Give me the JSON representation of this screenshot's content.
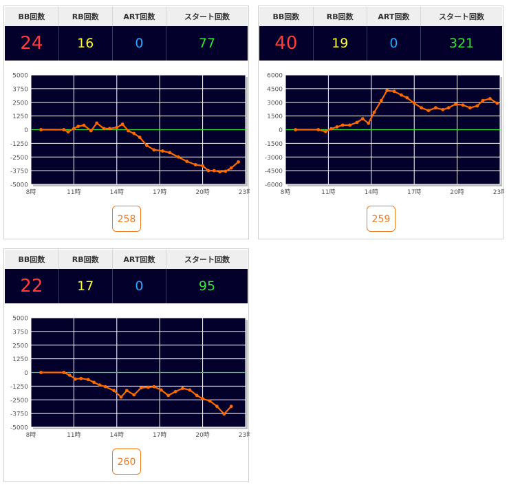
{
  "headers": {
    "bb": "BB回数",
    "rb": "RB回数",
    "art": "ART回数",
    "start": "スタート回数"
  },
  "colors": {
    "chart_bg": "#03002b",
    "line": "#ff6a00",
    "zero_line": "#33dd33",
    "bb": "#ff3b3b",
    "rb": "#ffff33",
    "art": "#2aa7ff",
    "start": "#33e533",
    "button": "#f07a1a"
  },
  "machines": [
    {
      "bb": "24",
      "rb": "16",
      "art": "0",
      "start": "77",
      "number": "258"
    },
    {
      "bb": "40",
      "rb": "19",
      "art": "0",
      "start": "321",
      "number": "259"
    },
    {
      "bb": "22",
      "rb": "17",
      "art": "0",
      "start": "95",
      "number": "260"
    }
  ],
  "chart_data": [
    {
      "type": "line",
      "xlim": [
        8,
        23
      ],
      "x_ticks": [
        "8時",
        "11時",
        "14時",
        "17時",
        "20時",
        "23時"
      ],
      "ylim": [
        -5000,
        5000
      ],
      "y_ticks": [
        "5000",
        "3750",
        "2500",
        "1250",
        "0",
        "-1250",
        "-2500",
        "-3750",
        "-5000"
      ],
      "grid": true,
      "x": [
        8.7,
        10.3,
        10.6,
        11.0,
        11.3,
        11.7,
        12.2,
        12.6,
        13.1,
        13.5,
        14.0,
        14.4,
        14.8,
        15.2,
        15.6,
        16.1,
        16.6,
        17.2,
        17.7,
        18.3,
        18.9,
        19.5,
        20.0,
        20.4,
        20.8,
        21.2,
        21.6,
        22.0,
        22.5
      ],
      "y": [
        0,
        0,
        -200,
        100,
        300,
        400,
        -100,
        600,
        100,
        100,
        200,
        500,
        -100,
        -350,
        -700,
        -1450,
        -1850,
        -1950,
        -2100,
        -2500,
        -2900,
        -3200,
        -3300,
        -3750,
        -3750,
        -3850,
        -3800,
        -3500,
        -2950
      ]
    },
    {
      "type": "line",
      "xlim": [
        8,
        23
      ],
      "x_ticks": [
        "8時",
        "11時",
        "14時",
        "17時",
        "20時",
        "23時"
      ],
      "ylim": [
        -6000,
        6000
      ],
      "y_ticks": [
        "6000",
        "4500",
        "3000",
        "1500",
        "0",
        "-1500",
        "-3000",
        "-4500",
        "-6000"
      ],
      "grid": true,
      "x": [
        8.7,
        10.3,
        10.8,
        11.2,
        11.6,
        12.0,
        12.5,
        13.0,
        13.4,
        13.8,
        14.2,
        14.7,
        15.1,
        15.6,
        16.1,
        16.5,
        17.0,
        17.5,
        18.0,
        18.5,
        19.0,
        19.4,
        19.9,
        20.4,
        20.9,
        21.4,
        21.8,
        22.3,
        22.8
      ],
      "y": [
        0,
        0,
        -200,
        100,
        300,
        500,
        500,
        800,
        1200,
        700,
        1900,
        3200,
        4300,
        4200,
        3800,
        3500,
        2900,
        2400,
        2100,
        2400,
        2200,
        2400,
        2800,
        2700,
        2400,
        2600,
        3200,
        3400,
        2900
      ]
    },
    {
      "type": "line",
      "xlim": [
        8,
        23
      ],
      "x_ticks": [
        "8時",
        "11時",
        "14時",
        "17時",
        "20時",
        "23時"
      ],
      "ylim": [
        -5000,
        5000
      ],
      "y_ticks": [
        "5000",
        "3750",
        "2500",
        "1250",
        "0",
        "-1250",
        "-2500",
        "-3750",
        "-5000"
      ],
      "grid": true,
      "x": [
        8.7,
        10.3,
        10.7,
        11.1,
        11.5,
        12.0,
        12.4,
        12.8,
        13.2,
        13.8,
        14.3,
        14.7,
        15.2,
        15.7,
        16.2,
        16.6,
        17.1,
        17.6,
        18.1,
        18.6,
        19.1,
        19.6,
        20.0,
        20.5,
        21.0,
        21.5,
        22.0
      ],
      "y": [
        0,
        0,
        -250,
        -600,
        -550,
        -650,
        -900,
        -1150,
        -1300,
        -1650,
        -2250,
        -1650,
        -2050,
        -1400,
        -1350,
        -1300,
        -1600,
        -2100,
        -1750,
        -1450,
        -1600,
        -2100,
        -2400,
        -2600,
        -3100,
        -3800,
        -3100
      ]
    }
  ]
}
